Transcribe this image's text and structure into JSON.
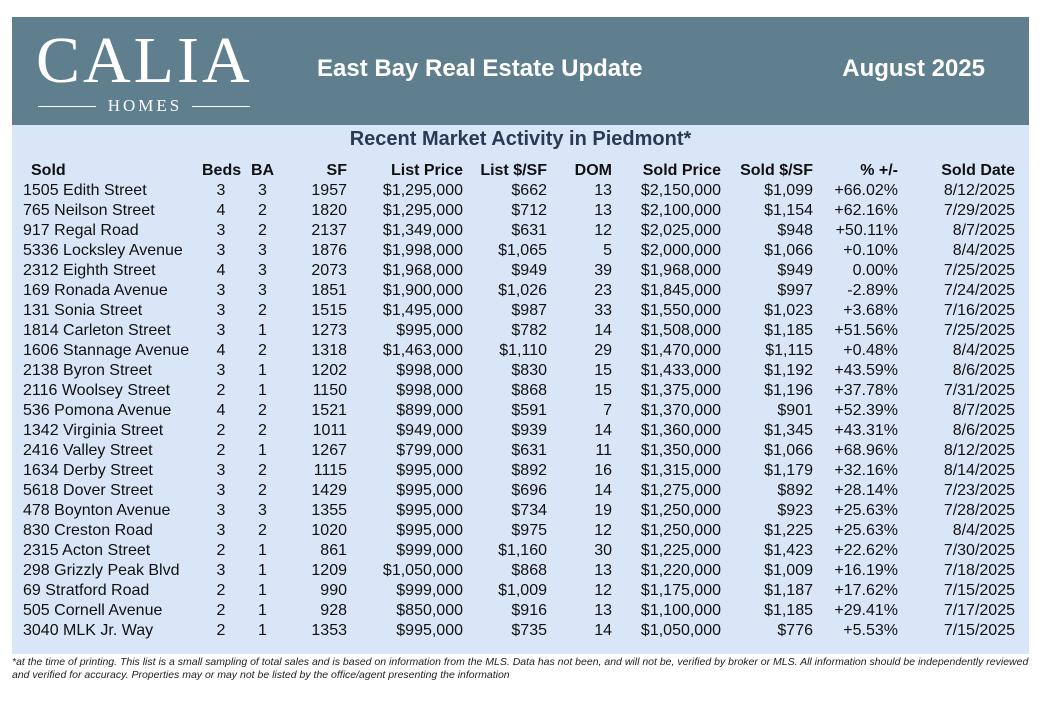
{
  "header": {
    "logo_main": "CALIA",
    "logo_sub": "HOMES",
    "title": "East Bay Real Estate Update",
    "date": "August 2025"
  },
  "subtitle": "Recent Market Activity in Piedmont*",
  "columns": [
    "Sold",
    "Beds",
    "BA",
    "SF",
    "List Price",
    "List $/SF",
    "DOM",
    "Sold Price",
    "Sold $/SF",
    "% +/-",
    "Sold Date"
  ],
  "rows": [
    [
      "1505 Edith Street",
      "3",
      "3",
      "1957",
      "$1,295,000",
      "$662",
      "13",
      "$2,150,000",
      "$1,099",
      "+66.02%",
      "8/12/2025"
    ],
    [
      "765 Neilson Street",
      "4",
      "2",
      "1820",
      "$1,295,000",
      "$712",
      "13",
      "$2,100,000",
      "$1,154",
      "+62.16%",
      "7/29/2025"
    ],
    [
      "917 Regal Road",
      "3",
      "2",
      "2137",
      "$1,349,000",
      "$631",
      "12",
      "$2,025,000",
      "$948",
      "+50.11%",
      "8/7/2025"
    ],
    [
      "5336 Locksley Avenue",
      "3",
      "3",
      "1876",
      "$1,998,000",
      "$1,065",
      "5",
      "$2,000,000",
      "$1,066",
      "+0.10%",
      "8/4/2025"
    ],
    [
      "2312 Eighth Street",
      "4",
      "3",
      "2073",
      "$1,968,000",
      "$949",
      "39",
      "$1,968,000",
      "$949",
      "0.00%",
      "7/25/2025"
    ],
    [
      "169 Ronada Avenue",
      "3",
      "3",
      "1851",
      "$1,900,000",
      "$1,026",
      "23",
      "$1,845,000",
      "$997",
      "-2.89%",
      "7/24/2025"
    ],
    [
      "131 Sonia Street",
      "3",
      "2",
      "1515",
      "$1,495,000",
      "$987",
      "33",
      "$1,550,000",
      "$1,023",
      "+3.68%",
      "7/16/2025"
    ],
    [
      "1814 Carleton Street",
      "3",
      "1",
      "1273",
      "$995,000",
      "$782",
      "14",
      "$1,508,000",
      "$1,185",
      "+51.56%",
      "7/25/2025"
    ],
    [
      "1606 Stannage Avenue",
      "4",
      "2",
      "1318",
      "$1,463,000",
      "$1,110",
      "29",
      "$1,470,000",
      "$1,115",
      "+0.48%",
      "8/4/2025"
    ],
    [
      "2138 Byron Street",
      "3",
      "1",
      "1202",
      "$998,000",
      "$830",
      "15",
      "$1,433,000",
      "$1,192",
      "+43.59%",
      "8/6/2025"
    ],
    [
      "2116 Woolsey Street",
      "2",
      "1",
      "1150",
      "$998,000",
      "$868",
      "15",
      "$1,375,000",
      "$1,196",
      "+37.78%",
      "7/31/2025"
    ],
    [
      "536 Pomona Avenue",
      "4",
      "2",
      "1521",
      "$899,000",
      "$591",
      "7",
      "$1,370,000",
      "$901",
      "+52.39%",
      "8/7/2025"
    ],
    [
      "1342 Virginia Street",
      "2",
      "2",
      "1011",
      "$949,000",
      "$939",
      "14",
      "$1,360,000",
      "$1,345",
      "+43.31%",
      "8/6/2025"
    ],
    [
      "2416 Valley Street",
      "2",
      "1",
      "1267",
      "$799,000",
      "$631",
      "11",
      "$1,350,000",
      "$1,066",
      "+68.96%",
      "8/12/2025"
    ],
    [
      "1634 Derby Street",
      "3",
      "2",
      "1115",
      "$995,000",
      "$892",
      "16",
      "$1,315,000",
      "$1,179",
      "+32.16%",
      "8/14/2025"
    ],
    [
      "5618 Dover Street",
      "3",
      "2",
      "1429",
      "$995,000",
      "$696",
      "14",
      "$1,275,000",
      "$892",
      "+28.14%",
      "7/23/2025"
    ],
    [
      "478 Boynton Avenue",
      "3",
      "3",
      "1355",
      "$995,000",
      "$734",
      "19",
      "$1,250,000",
      "$923",
      "+25.63%",
      "7/28/2025"
    ],
    [
      "830 Creston Road",
      "3",
      "2",
      "1020",
      "$995,000",
      "$975",
      "12",
      "$1,250,000",
      "$1,225",
      "+25.63%",
      "8/4/2025"
    ],
    [
      "2315 Acton Street",
      "2",
      "1",
      "861",
      "$999,000",
      "$1,160",
      "30",
      "$1,225,000",
      "$1,423",
      "+22.62%",
      "7/30/2025"
    ],
    [
      "298 Grizzly Peak Blvd",
      "3",
      "1",
      "1209",
      "$1,050,000",
      "$868",
      "13",
      "$1,220,000",
      "$1,009",
      "+16.19%",
      "7/18/2025"
    ],
    [
      "69 Stratford Road",
      "2",
      "1",
      "990",
      "$999,000",
      "$1,009",
      "12",
      "$1,175,000",
      "$1,187",
      "+17.62%",
      "7/15/2025"
    ],
    [
      "505 Cornell Avenue",
      "2",
      "1",
      "928",
      "$850,000",
      "$916",
      "13",
      "$1,100,000",
      "$1,185",
      "+29.41%",
      "7/17/2025"
    ],
    [
      "3040 MLK Jr. Way",
      "2",
      "1",
      "1353",
      "$995,000",
      "$735",
      "14",
      "$1,050,000",
      "$776",
      "+5.53%",
      "7/15/2025"
    ]
  ],
  "footnote": "*at the time of printing. This list is a small sampling of total sales and is based on information from the MLS. Data has not been, and will not be, verified by broker or MLS. All information should be independently reviewed and verified for accuracy. Properties may or may not be listed by the office/agent presenting the information",
  "colors": {
    "header_bg": "#5f7f8f",
    "panel_bg": "#d9e6f8",
    "subtitle": "#2a3a55"
  }
}
